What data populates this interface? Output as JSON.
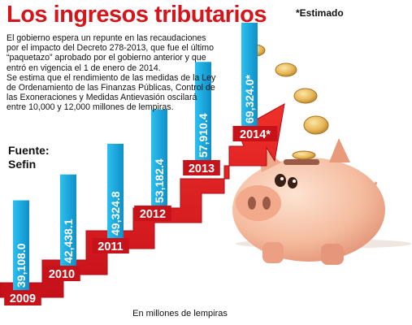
{
  "header": {
    "title": "Los ingresos tributarios",
    "note": "*Estimado"
  },
  "body": {
    "paragraphs": [
      "El gobierno espera un repunte en las recaudaciones por el impacto del Decreto 278-2013, que fue el último “paquetazo” aprobado por el gobierno anterior y que entró en vigencia el 1 de enero de 2014.",
      "Se estima que el rendimiento de las medidas de la Ley de Ordenamiento de las Finanzas Públicas, Control de las Exoneraciones y Medidas Antievasión oscilará entre 10,000 y 12,000 millones de lempiras."
    ]
  },
  "source": {
    "label": "Fuente:",
    "name": "Sefin"
  },
  "units_note": "En millones de lempiras",
  "colors": {
    "title": "#d4161c",
    "arrow": "#e41e1e",
    "year_box": "#d4161c",
    "value_bar": "#15a9e0",
    "piggy": "#f3b79a",
    "coin": "#e3b050"
  },
  "chart_data": {
    "type": "bar",
    "categories": [
      "2009",
      "2010",
      "2011",
      "2012",
      "2013",
      "2014*"
    ],
    "values": [
      39108.0,
      42438.1,
      49324.8,
      53182.4,
      57910.4,
      69324.0
    ],
    "value_labels": [
      "39,108.0",
      "42,438.1",
      "49,324.8",
      "53,182.4",
      "57,910.4",
      "69,324.0*"
    ],
    "title": "Los ingresos tributarios",
    "ylabel": "En millones de lempiras",
    "grid": false,
    "legend": "none"
  }
}
